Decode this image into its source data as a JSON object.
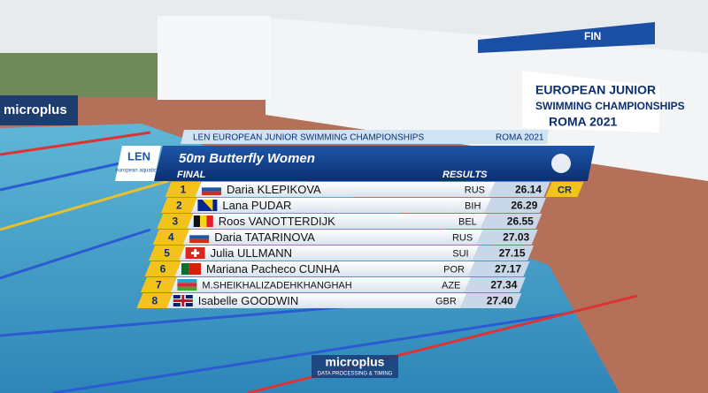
{
  "background": {
    "banner": [
      "EUROPEAN JUNIOR",
      "SWIMMING CHAMPIONSHIPS",
      "ROMA 2021"
    ],
    "wall_logo": "microplus",
    "sponsor": "FIN"
  },
  "graphic": {
    "competition": "LEN EUROPEAN JUNIOR SWIMMING CHAMPIONSHIPS",
    "location": "ROMA 2021",
    "logo": {
      "name": "LEN",
      "tagline": "european aquatics"
    },
    "event": "50m Butterfly Women",
    "stage": "FINAL",
    "results_label": "RESULTS",
    "rows": [
      {
        "rank": 1,
        "name": "Daria KLEPIKOVA",
        "country": "RUS",
        "time": "26.14",
        "record": "CR"
      },
      {
        "rank": 2,
        "name": "Lana PUDAR",
        "country": "BIH",
        "time": "26.29"
      },
      {
        "rank": 3,
        "name": "Roos VANOTTERDIJK",
        "country": "BEL",
        "time": "26.55"
      },
      {
        "rank": 4,
        "name": "Daria TATARINOVA",
        "country": "RUS",
        "time": "27.03"
      },
      {
        "rank": 5,
        "name": "Julia ULLMANN",
        "country": "SUI",
        "time": "27.15"
      },
      {
        "rank": 6,
        "name": "Mariana Pacheco CUNHA",
        "country": "POR",
        "time": "27.17"
      },
      {
        "rank": 7,
        "name": "M.SHEIKHALIZADEHKHANGHAH",
        "country": "AZE",
        "time": "27.34"
      },
      {
        "rank": 8,
        "name": "Isabelle GOODWIN",
        "country": "GBR",
        "time": "27.40"
      }
    ]
  },
  "footer": {
    "logo": "microplus",
    "tagline": "DATA PROCESSING & TIMING"
  }
}
